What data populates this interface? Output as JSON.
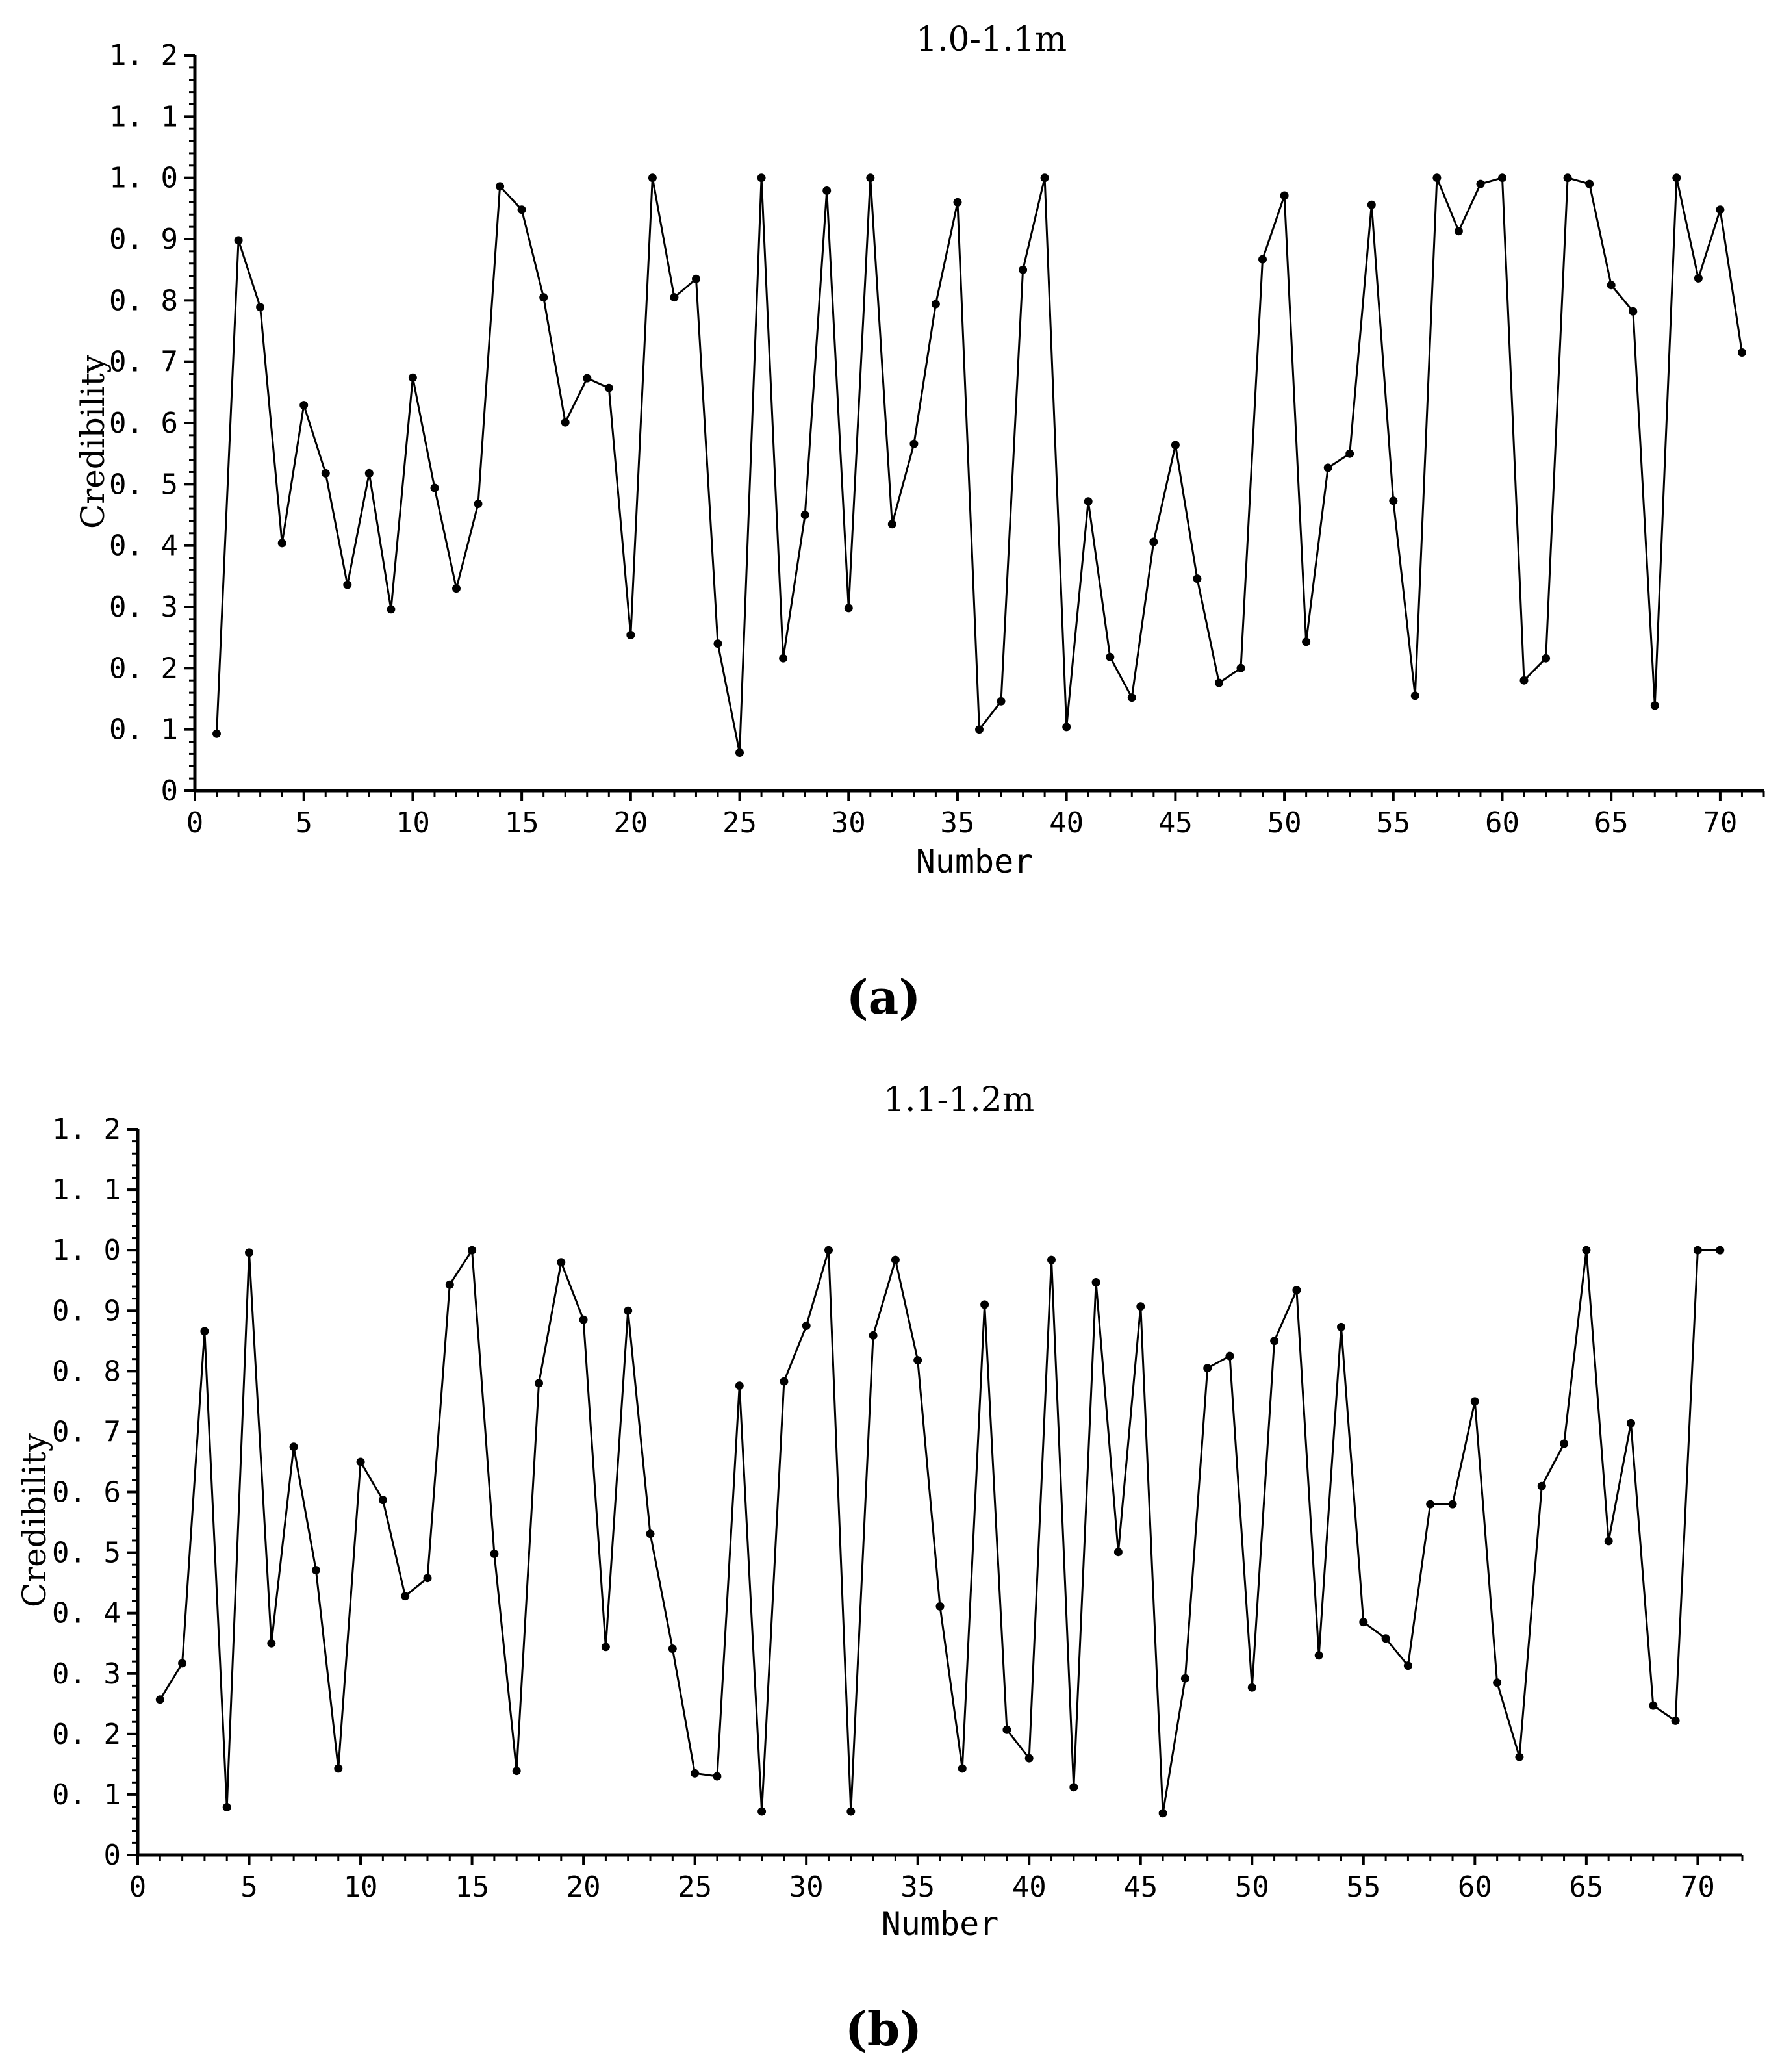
{
  "chart_data": [
    {
      "type": "line",
      "panel": "(a)",
      "title": "1.0-1.1m",
      "xlabel": "Number",
      "ylabel": "Credibility",
      "xlim": [
        0,
        72
      ],
      "ylim": [
        0,
        1.2
      ],
      "x_ticks": [
        0,
        5,
        10,
        15,
        20,
        25,
        30,
        35,
        40,
        45,
        50,
        55,
        60,
        65,
        70
      ],
      "y_ticks": [
        "0",
        "0. 1",
        "0. 2",
        "0. 3",
        "0. 4",
        "0. 5",
        "0. 6",
        "0. 7",
        "0. 8",
        "0. 9",
        "1. 0",
        "1. 1",
        "1. 2"
      ],
      "grid": false,
      "series": [
        {
          "color": "#000000",
          "x": [
            1,
            2,
            3,
            4,
            5,
            6,
            7,
            8,
            9,
            10,
            11,
            12,
            13,
            14,
            15,
            16,
            17,
            18,
            19,
            20,
            21,
            22,
            23,
            24,
            25,
            26,
            27,
            28,
            29,
            30,
            31,
            32,
            33,
            34,
            35,
            36,
            37,
            38,
            39,
            40,
            41,
            42,
            43,
            44,
            45,
            46,
            47,
            48,
            49,
            50,
            51,
            52,
            53,
            54,
            55,
            56,
            57,
            58,
            59,
            60,
            61,
            62,
            63,
            64,
            65,
            66,
            67,
            68,
            69,
            70,
            71
          ],
          "values": [
            0.093,
            0.898,
            0.789,
            0.404,
            0.629,
            0.518,
            0.336,
            0.518,
            0.296,
            0.674,
            0.494,
            0.33,
            0.468,
            0.986,
            0.948,
            0.805,
            0.601,
            0.673,
            0.657,
            0.254,
            1.0,
            0.805,
            0.835,
            0.24,
            0.062,
            1.0,
            0.216,
            0.45,
            0.979,
            0.298,
            1.0,
            0.435,
            0.566,
            0.794,
            0.96,
            0.1,
            0.146,
            0.85,
            1.0,
            0.104,
            0.472,
            0.218,
            0.152,
            0.406,
            0.564,
            0.346,
            0.176,
            0.2,
            0.867,
            0.971,
            0.243,
            0.527,
            0.55,
            0.956,
            0.473,
            0.155,
            1.0,
            0.913,
            0.99,
            1.0,
            0.18,
            0.216,
            1.0,
            0.99,
            0.825,
            0.782,
            0.139,
            1.0,
            0.836,
            0.948,
            0.715
          ]
        }
      ]
    },
    {
      "type": "line",
      "panel": "(b)",
      "title": "1.1-1.2m",
      "xlabel": "Number",
      "ylabel": "Credibility",
      "xlim": [
        0,
        72
      ],
      "ylim": [
        0,
        1.2
      ],
      "x_ticks": [
        0,
        5,
        10,
        15,
        20,
        25,
        30,
        35,
        40,
        45,
        50,
        55,
        60,
        65,
        70
      ],
      "y_ticks": [
        "0",
        "0. 1",
        "0. 2",
        "0. 3",
        "0. 4",
        "0. 5",
        "0. 6",
        "0. 7",
        "0. 8",
        "0. 9",
        "1. 0",
        "1. 1",
        "1. 2"
      ],
      "grid": false,
      "series": [
        {
          "color": "#000000",
          "x": [
            1,
            2,
            3,
            4,
            5,
            6,
            7,
            8,
            9,
            10,
            11,
            12,
            13,
            14,
            15,
            16,
            17,
            18,
            19,
            20,
            21,
            22,
            23,
            24,
            25,
            26,
            27,
            28,
            29,
            30,
            31,
            32,
            33,
            34,
            35,
            36,
            37,
            38,
            39,
            40,
            41,
            42,
            43,
            44,
            45,
            46,
            47,
            48,
            49,
            50,
            51,
            52,
            53,
            54,
            55,
            56,
            57,
            58,
            59,
            60,
            61,
            62,
            63,
            64,
            65,
            66,
            67,
            68,
            69,
            70,
            71
          ],
          "values": [
            0.257,
            0.317,
            0.866,
            0.079,
            0.996,
            0.35,
            0.675,
            0.471,
            0.143,
            0.65,
            0.587,
            0.428,
            0.458,
            0.943,
            1.0,
            0.498,
            0.139,
            0.78,
            0.98,
            0.885,
            0.344,
            0.9,
            0.531,
            0.341,
            0.135,
            0.13,
            0.776,
            0.072,
            0.783,
            0.875,
            1.0,
            0.072,
            0.859,
            0.984,
            0.818,
            0.411,
            0.143,
            0.91,
            0.207,
            0.16,
            0.984,
            0.112,
            0.947,
            0.501,
            0.907,
            0.069,
            0.292,
            0.805,
            0.825,
            0.277,
            0.85,
            0.934,
            0.33,
            0.873,
            0.385,
            0.358,
            0.313,
            0.58,
            0.58,
            0.75,
            0.285,
            0.162,
            0.61,
            0.68,
            1.0,
            0.519,
            0.714,
            0.247,
            0.222,
            1.0,
            1.0
          ]
        }
      ]
    }
  ]
}
